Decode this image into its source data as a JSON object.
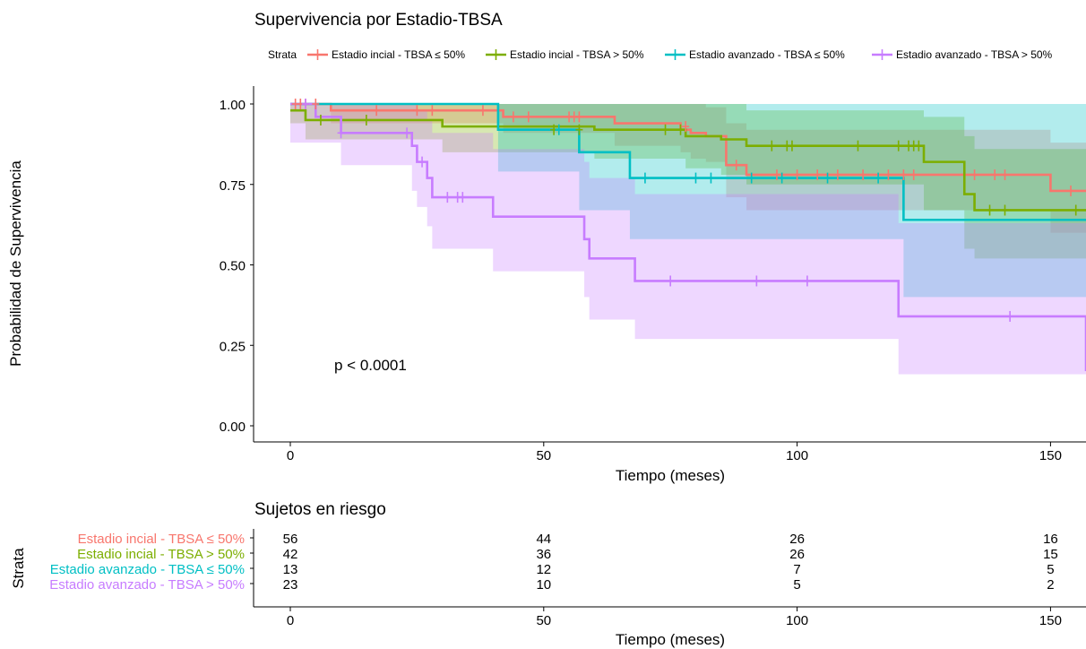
{
  "chart_data": [
    {
      "type": "line",
      "subtype": "kaplan-meier",
      "title": "Supervivencia por Estadio-TBSA",
      "xlabel": "Tiempo (meses)",
      "ylabel": "Probabilidad de Supervivencia",
      "xlim": [
        0,
        157
      ],
      "ylim": [
        0,
        1.0
      ],
      "xticks": [
        0,
        50,
        100,
        150
      ],
      "yticks": [
        "0.00",
        "0.25",
        "0.50",
        "0.75",
        "1.00"
      ],
      "grid": false,
      "legend_title": "Strata",
      "legend_position": "top",
      "annotation": "p < 0.0001",
      "series": [
        {
          "name": "Estadio incial - TBSA ≤ 50%",
          "color": "#f8766d",
          "steps": [
            [
              0,
              1.0
            ],
            [
              8,
              0.98
            ],
            [
              42,
              0.96
            ],
            [
              64,
              0.94
            ],
            [
              77,
              0.92
            ],
            [
              79,
              0.91
            ],
            [
              82,
              0.9
            ],
            [
              86,
              0.81
            ],
            [
              90,
              0.78
            ],
            [
              150,
              0.73
            ],
            [
              157,
              0.73
            ]
          ],
          "upper": [
            [
              0,
              1.0
            ],
            [
              8,
              1.0
            ],
            [
              42,
              1.0
            ],
            [
              64,
              1.0
            ],
            [
              77,
              1.0
            ],
            [
              79,
              1.0
            ],
            [
              82,
              0.99
            ],
            [
              86,
              0.94
            ],
            [
              90,
              0.92
            ],
            [
              150,
              0.88
            ],
            [
              157,
              0.88
            ]
          ],
          "lower": [
            [
              0,
              1.0
            ],
            [
              8,
              0.94
            ],
            [
              42,
              0.91
            ],
            [
              64,
              0.87
            ],
            [
              77,
              0.85
            ],
            [
              79,
              0.83
            ],
            [
              82,
              0.82
            ],
            [
              86,
              0.71
            ],
            [
              90,
              0.67
            ],
            [
              150,
              0.6
            ],
            [
              157,
              0.6
            ]
          ],
          "censors": [
            [
              1,
              1.0
            ],
            [
              2,
              1.0
            ],
            [
              3,
              1.0
            ],
            [
              5,
              1.0
            ],
            [
              17,
              0.98
            ],
            [
              25,
              0.98
            ],
            [
              28,
              0.98
            ],
            [
              38,
              0.98
            ],
            [
              44,
              0.96
            ],
            [
              47,
              0.96
            ],
            [
              55,
              0.96
            ],
            [
              56,
              0.96
            ],
            [
              57,
              0.96
            ],
            [
              78,
              0.93
            ],
            [
              88,
              0.81
            ],
            [
              96,
              0.78
            ],
            [
              100,
              0.78
            ],
            [
              104,
              0.78
            ],
            [
              108,
              0.78
            ],
            [
              113,
              0.78
            ],
            [
              118,
              0.78
            ],
            [
              121,
              0.78
            ],
            [
              123,
              0.78
            ],
            [
              135,
              0.78
            ],
            [
              139,
              0.78
            ],
            [
              141,
              0.78
            ],
            [
              154,
              0.73
            ]
          ]
        },
        {
          "name": "Estadio incial - TBSA > 50%",
          "color": "#7cae00",
          "steps": [
            [
              0,
              0.98
            ],
            [
              3,
              0.95
            ],
            [
              30,
              0.93
            ],
            [
              60,
              0.92
            ],
            [
              78,
              0.9
            ],
            [
              85,
              0.89
            ],
            [
              90,
              0.87
            ],
            [
              125,
              0.82
            ],
            [
              133,
              0.72
            ],
            [
              135,
              0.67
            ],
            [
              157,
              0.67
            ]
          ],
          "upper": [
            [
              0,
              1.0
            ],
            [
              3,
              1.0
            ],
            [
              30,
              1.0
            ],
            [
              60,
              1.0
            ],
            [
              78,
              1.0
            ],
            [
              85,
              1.0
            ],
            [
              90,
              0.98
            ],
            [
              125,
              0.96
            ],
            [
              133,
              0.9
            ],
            [
              135,
              0.86
            ],
            [
              157,
              0.86
            ]
          ],
          "lower": [
            [
              0,
              0.94
            ],
            [
              3,
              0.89
            ],
            [
              30,
              0.85
            ],
            [
              60,
              0.83
            ],
            [
              78,
              0.8
            ],
            [
              85,
              0.78
            ],
            [
              90,
              0.75
            ],
            [
              125,
              0.67
            ],
            [
              133,
              0.55
            ],
            [
              135,
              0.52
            ],
            [
              157,
              0.52
            ]
          ],
          "censors": [
            [
              6,
              0.95
            ],
            [
              15,
              0.95
            ],
            [
              52,
              0.92
            ],
            [
              57,
              0.92
            ],
            [
              74,
              0.92
            ],
            [
              77,
              0.92
            ],
            [
              95,
              0.87
            ],
            [
              98,
              0.87
            ],
            [
              99,
              0.87
            ],
            [
              112,
              0.87
            ],
            [
              120,
              0.87
            ],
            [
              122,
              0.87
            ],
            [
              123,
              0.87
            ],
            [
              124,
              0.87
            ],
            [
              138,
              0.67
            ],
            [
              141,
              0.67
            ],
            [
              155,
              0.67
            ]
          ]
        },
        {
          "name": "Estadio avanzado - TBSA ≤ 50%",
          "color": "#00bfc4",
          "steps": [
            [
              0,
              1.0
            ],
            [
              41,
              0.92
            ],
            [
              57,
              0.85
            ],
            [
              67,
              0.77
            ],
            [
              121,
              0.64
            ],
            [
              157,
              0.64
            ]
          ],
          "upper": [
            [
              0,
              1.0
            ],
            [
              41,
              1.0
            ],
            [
              57,
              1.0
            ],
            [
              67,
              1.0
            ],
            [
              121,
              1.0
            ],
            [
              157,
              1.0
            ]
          ],
          "lower": [
            [
              0,
              1.0
            ],
            [
              41,
              0.79
            ],
            [
              57,
              0.67
            ],
            [
              67,
              0.58
            ],
            [
              121,
              0.4
            ],
            [
              157,
              0.4
            ]
          ],
          "censors": [
            [
              53,
              0.92
            ],
            [
              70,
              0.77
            ],
            [
              80,
              0.77
            ],
            [
              83,
              0.77
            ],
            [
              91,
              0.77
            ],
            [
              97,
              0.77
            ],
            [
              106,
              0.77
            ],
            [
              116,
              0.77
            ]
          ]
        },
        {
          "name": "Estadio avanzado - TBSA > 50%",
          "color": "#c77cff",
          "steps": [
            [
              0,
              1.0
            ],
            [
              5,
              0.96
            ],
            [
              10,
              0.91
            ],
            [
              24,
              0.87
            ],
            [
              25,
              0.82
            ],
            [
              27,
              0.77
            ],
            [
              28,
              0.71
            ],
            [
              40,
              0.65
            ],
            [
              58,
              0.58
            ],
            [
              59,
              0.52
            ],
            [
              68,
              0.45
            ],
            [
              120,
              0.34
            ],
            [
              157,
              0.17
            ]
          ],
          "upper": [
            [
              0,
              1.0
            ],
            [
              5,
              1.0
            ],
            [
              10,
              1.0
            ],
            [
              24,
              1.0
            ],
            [
              25,
              0.98
            ],
            [
              27,
              0.95
            ],
            [
              28,
              0.91
            ],
            [
              40,
              0.86
            ],
            [
              58,
              0.82
            ],
            [
              59,
              0.77
            ],
            [
              68,
              0.72
            ],
            [
              120,
              0.63
            ],
            [
              157,
              0.63
            ]
          ],
          "lower": [
            [
              0,
              0.88
            ],
            [
              5,
              0.88
            ],
            [
              10,
              0.81
            ],
            [
              24,
              0.73
            ],
            [
              25,
              0.68
            ],
            [
              27,
              0.62
            ],
            [
              28,
              0.55
            ],
            [
              40,
              0.48
            ],
            [
              58,
              0.4
            ],
            [
              59,
              0.33
            ],
            [
              68,
              0.27
            ],
            [
              120,
              0.16
            ],
            [
              157,
              0.16
            ]
          ],
          "censors": [
            [
              3,
              1.0
            ],
            [
              10,
              0.91
            ],
            [
              23,
              0.91
            ],
            [
              26,
              0.82
            ],
            [
              31,
              0.71
            ],
            [
              33,
              0.71
            ],
            [
              34,
              0.71
            ],
            [
              75,
              0.45
            ],
            [
              92,
              0.45
            ],
            [
              102,
              0.45
            ],
            [
              142,
              0.34
            ]
          ]
        }
      ]
    },
    {
      "type": "table",
      "title": "Sujetos en riesgo",
      "xlabel": "Tiempo (meses)",
      "ylabel": "Strata",
      "xticks": [
        0,
        50,
        100,
        150
      ],
      "rows": [
        {
          "name": "Estadio incial - TBSA ≤ 50%",
          "color": "#f8766d",
          "values": [
            56,
            44,
            26,
            16
          ]
        },
        {
          "name": "Estadio incial - TBSA > 50%",
          "color": "#7cae00",
          "values": [
            42,
            36,
            26,
            15
          ]
        },
        {
          "name": "Estadio avanzado - TBSA ≤ 50%",
          "color": "#00bfc4",
          "values": [
            13,
            12,
            7,
            5
          ]
        },
        {
          "name": "Estadio avanzado - TBSA > 50%",
          "color": "#c77cff",
          "values": [
            23,
            10,
            5,
            2
          ]
        }
      ]
    }
  ]
}
